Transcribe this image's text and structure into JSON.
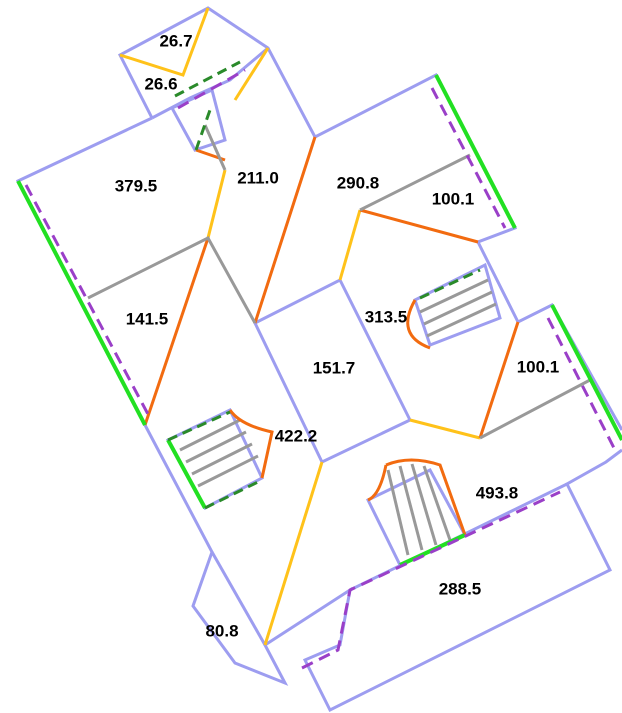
{
  "rooms": [
    {
      "label": "26.7"
    },
    {
      "label": "26.6"
    },
    {
      "label": "379.5"
    },
    {
      "label": "211.0"
    },
    {
      "label": "290.8"
    },
    {
      "label": "100.1"
    },
    {
      "label": "141.5"
    },
    {
      "label": "313.5"
    },
    {
      "label": "151.7"
    },
    {
      "label": "100.1"
    },
    {
      "label": "422.2"
    },
    {
      "label": "493.8"
    },
    {
      "label": "288.5"
    },
    {
      "label": "80.8"
    }
  ]
}
